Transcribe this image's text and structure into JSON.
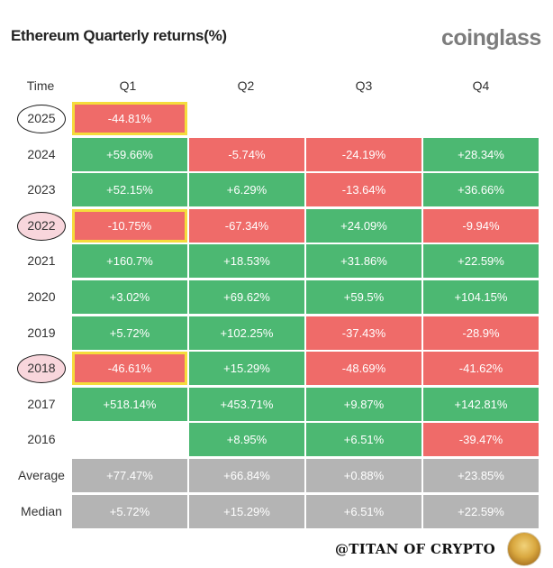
{
  "title": "Ethereum Quarterly returns(%)",
  "brand": "coinglass",
  "watermark": "@TITAN OF CRYPTO",
  "colors": {
    "positive": "#4cb872",
    "negative": "#ef6b69",
    "summary": "#b4b4b4",
    "highlight": "#f5dc3c",
    "circle_fill": "#f8d6dc"
  },
  "icons": {
    "avatar": "avatar-icon"
  },
  "chart_data": {
    "type": "table",
    "columns": [
      "Time",
      "Q1",
      "Q2",
      "Q3",
      "Q4"
    ],
    "rows": [
      {
        "label": "2025",
        "values": [
          "-44.81%",
          "",
          "",
          ""
        ],
        "circled": true,
        "circle_filled": false,
        "highlight_q1": true
      },
      {
        "label": "2024",
        "values": [
          "+59.66%",
          "-5.74%",
          "-24.19%",
          "+28.34%"
        ]
      },
      {
        "label": "2023",
        "values": [
          "+52.15%",
          "+6.29%",
          "-13.64%",
          "+36.66%"
        ]
      },
      {
        "label": "2022",
        "values": [
          "-10.75%",
          "-67.34%",
          "+24.09%",
          "-9.94%"
        ],
        "circled": true,
        "circle_filled": true,
        "highlight_q1": true
      },
      {
        "label": "2021",
        "values": [
          "+160.7%",
          "+18.53%",
          "+31.86%",
          "+22.59%"
        ]
      },
      {
        "label": "2020",
        "values": [
          "+3.02%",
          "+69.62%",
          "+59.5%",
          "+104.15%"
        ]
      },
      {
        "label": "2019",
        "values": [
          "+5.72%",
          "+102.25%",
          "-37.43%",
          "-28.9%"
        ]
      },
      {
        "label": "2018",
        "values": [
          "-46.61%",
          "+15.29%",
          "-48.69%",
          "-41.62%"
        ],
        "circled": true,
        "circle_filled": true,
        "highlight_q1": true
      },
      {
        "label": "2017",
        "values": [
          "+518.14%",
          "+453.71%",
          "+9.87%",
          "+142.81%"
        ]
      },
      {
        "label": "2016",
        "values": [
          "",
          "+8.95%",
          "+6.51%",
          "-39.47%"
        ]
      }
    ],
    "summary": [
      {
        "label": "Average",
        "values": [
          "+77.47%",
          "+66.84%",
          "+0.88%",
          "+23.85%"
        ]
      },
      {
        "label": "Median",
        "values": [
          "+5.72%",
          "+15.29%",
          "+6.51%",
          "+22.59%"
        ]
      }
    ]
  }
}
